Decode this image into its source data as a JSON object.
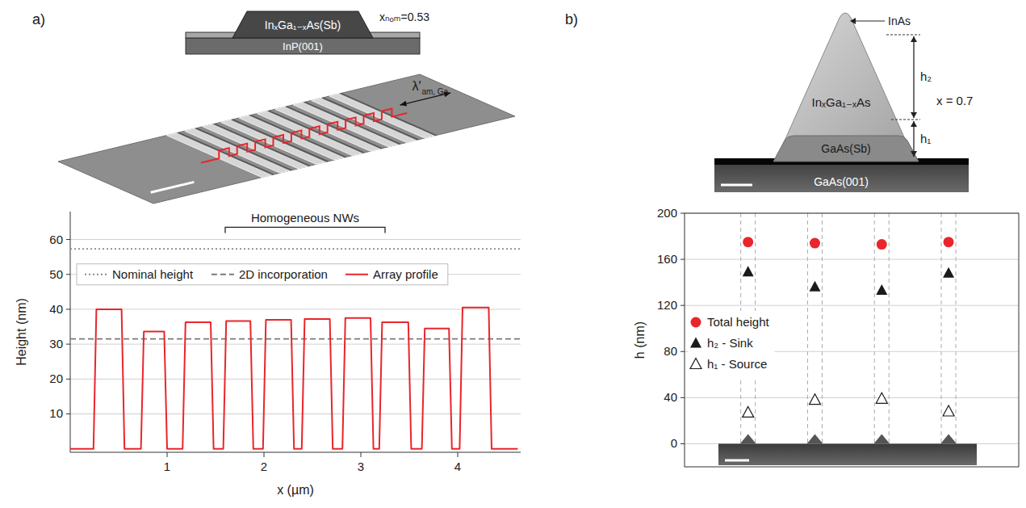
{
  "chart_data": [
    {
      "type": "line",
      "panel_label": "a)",
      "x_label": "x (µm)",
      "y_label": "Height (nm)",
      "x": [
        0,
        0.24,
        0.27,
        0.53,
        0.56,
        0.73,
        0.76,
        0.97,
        1.0,
        1.16,
        1.19,
        1.45,
        1.48,
        1.58,
        1.61,
        1.86,
        1.89,
        1.99,
        2.02,
        2.28,
        2.31,
        2.39,
        2.42,
        2.68,
        2.71,
        2.81,
        2.84,
        3.1,
        3.13,
        3.19,
        3.22,
        3.49,
        3.52,
        3.63,
        3.66,
        3.91,
        3.94,
        4.02,
        4.05,
        4.32,
        4.35,
        4.62
      ],
      "series": [
        {
          "name": "Array profile",
          "color": "#e8262b",
          "line_style": "solid",
          "values": [
            0,
            0,
            40,
            40,
            0,
            0,
            33.6,
            33.6,
            0,
            0,
            36.3,
            36.3,
            0,
            0,
            36.6,
            36.6,
            0,
            0,
            37,
            37,
            0,
            0,
            37.2,
            37.2,
            0,
            0,
            37.5,
            37.5,
            0,
            0,
            36.3,
            36.3,
            0,
            0,
            34.5,
            34.5,
            0,
            0,
            40.5,
            40.5,
            0,
            0
          ]
        }
      ],
      "xlim": [
        0,
        4.65
      ],
      "xticks": [
        1,
        2,
        3,
        4
      ],
      "ylim": [
        -1,
        68
      ],
      "yticks": [
        10,
        20,
        30,
        40,
        50,
        60
      ],
      "grid": true,
      "legend": "top",
      "reference_lines": [
        {
          "name": "Nominal height",
          "value": 57.3,
          "line_style": "dotted",
          "color": "#8a8a8a"
        },
        {
          "name": "2D incorporation",
          "value": 31.5,
          "line_style": "dashed",
          "color": "#7a7a7a"
        }
      ],
      "annotation": {
        "text": "Homogeneous NWs",
        "x": [
          1.6,
          3.25
        ],
        "y": 63.5
      },
      "schematic": {
        "layer": "InₓGa₁₋ₓAs(Sb)",
        "substrate": "InP(001)",
        "composition": "xₙₒₘ=0.53"
      },
      "afm_image": {
        "label": "λ′",
        "label_subscript": "am, Ga"
      }
    },
    {
      "type": "scatter",
      "panel_label": "b)",
      "y_label": "h (nm)",
      "categories": [
        null,
        null,
        null,
        null
      ],
      "series": [
        {
          "name": "Total height",
          "color": "#e8262b",
          "marker": "circle",
          "values": [
            175,
            174,
            173,
            175
          ]
        },
        {
          "name": "h₂ - Sink",
          "color": "#1a1a1a",
          "marker": "triangle",
          "values": [
            149,
            136,
            133,
            148
          ]
        },
        {
          "name": "h₁ - Source",
          "color": "#1a1a1a",
          "marker": "open-triangle",
          "values": [
            27,
            38,
            39,
            28
          ]
        }
      ],
      "ylim": [
        -20,
        200
      ],
      "yticks": [
        0,
        40,
        80,
        120,
        160,
        200
      ],
      "grid": true,
      "legend": "left",
      "tick_labels": "y",
      "tem_image": {
        "top": "InAs",
        "upper": "InₓGa₁₋ₓAs",
        "lower": "GaAs(Sb)",
        "substrate": "GaAs(001)",
        "composition": "x = 0.7",
        "h_upper": "h₂",
        "h_lower": "h₁"
      }
    }
  ]
}
